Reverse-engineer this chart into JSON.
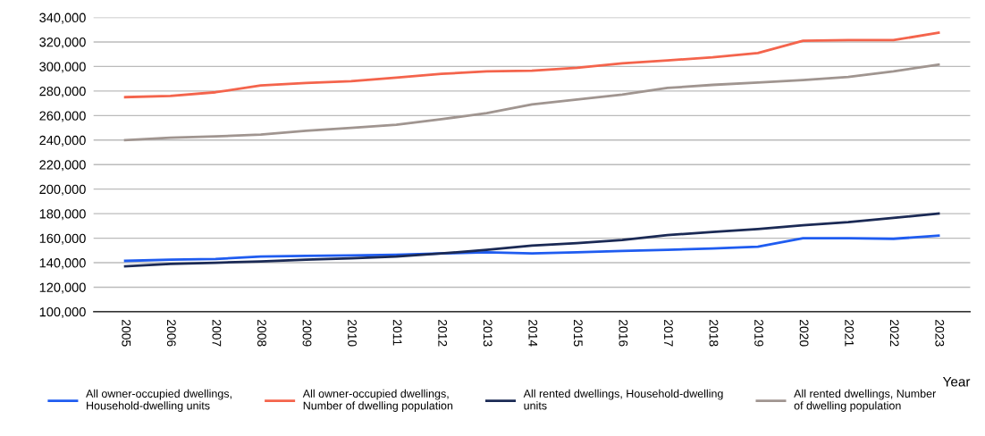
{
  "chart_data": {
    "type": "line",
    "xlabel": "Year",
    "categories": [
      "2005",
      "2006",
      "2007",
      "2008",
      "2009",
      "2010",
      "2011",
      "2012",
      "2013",
      "2014",
      "2015",
      "2016",
      "2017",
      "2018",
      "2019",
      "2020",
      "2021",
      "2022",
      "2023"
    ],
    "series": [
      {
        "name": "All owner-occupied dwellings,\nHousehold-dwelling units",
        "color": "#1f5cf0",
        "values": [
          141500,
          142500,
          143000,
          145000,
          145500,
          146000,
          146500,
          147500,
          148500,
          147500,
          148500,
          149500,
          150500,
          151500,
          153000,
          160000,
          160000,
          159500,
          162000
        ]
      },
      {
        "name": "All owner-occupied dwellings,\nNumber of dwelling population",
        "color": "#f4644c",
        "values": [
          275000,
          276000,
          279000,
          284500,
          286500,
          288000,
          291000,
          294000,
          296000,
          296500,
          299000,
          302500,
          305000,
          307500,
          311000,
          321000,
          321500,
          321500,
          327500
        ]
      },
      {
        "name": "All rented dwellings, Household-dwelling\nunits",
        "color": "#1b2a55",
        "values": [
          137000,
          139000,
          140000,
          141000,
          142500,
          143500,
          145000,
          147500,
          150500,
          154000,
          156000,
          158500,
          162500,
          165000,
          167500,
          170500,
          173000,
          176500,
          180000
        ]
      },
      {
        "name": "All rented dwellings, Number\nof dwelling population",
        "color": "#a09590",
        "values": [
          240000,
          242000,
          243000,
          244500,
          247500,
          250000,
          252500,
          257000,
          262000,
          269000,
          273000,
          277000,
          282500,
          285000,
          287000,
          289000,
          291500,
          296000,
          301500
        ]
      }
    ],
    "ylim": [
      100000,
      340000
    ],
    "yticks": [
      {
        "value": 100000,
        "label": "100,000"
      },
      {
        "value": 120000,
        "label": "120,000"
      },
      {
        "value": 140000,
        "label": "140,000"
      },
      {
        "value": 160000,
        "label": "160,000"
      },
      {
        "value": 180000,
        "label": "180,000"
      },
      {
        "value": 200000,
        "label": "200,000"
      },
      {
        "value": 220000,
        "label": "220,000"
      },
      {
        "value": 240000,
        "label": "240,000"
      },
      {
        "value": 260000,
        "label": "260,000"
      },
      {
        "value": 280000,
        "label": "280,000"
      },
      {
        "value": 300000,
        "label": "300,000"
      },
      {
        "value": 320000,
        "label": "320,000"
      },
      {
        "value": 340000,
        "label": "340,000"
      }
    ],
    "grid": "y",
    "legend": "bottom",
    "marker": "none",
    "line_style": "solid"
  }
}
